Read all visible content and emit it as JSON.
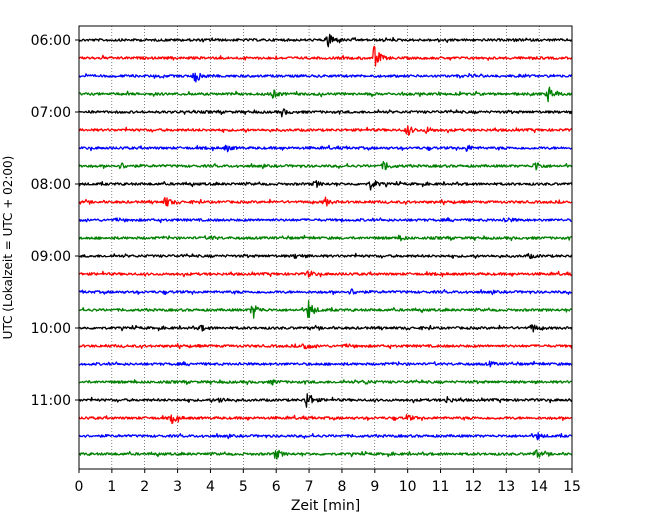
{
  "chart_data": {
    "type": "line",
    "title": "",
    "xlabel": "Zeit  [min]",
    "ylabel": "UTC (Lokalzeit = UTC + 02:00)",
    "xlim": [
      0,
      15
    ],
    "x_ticks": [
      0,
      1,
      2,
      3,
      4,
      5,
      6,
      7,
      8,
      9,
      10,
      11,
      12,
      13,
      14,
      15
    ],
    "y_ticks": [
      "06:00",
      "07:00",
      "08:00",
      "09:00",
      "10:00",
      "11:00"
    ],
    "grid": "vertical dotted",
    "trace_colors": [
      "#000000",
      "#ff0000",
      "#0000ff",
      "#008000"
    ],
    "traces": [
      {
        "start": "06:00",
        "events": [
          [
            7.6,
            9
          ]
        ]
      },
      {
        "start": "06:15",
        "events": [
          [
            9.0,
            13
          ]
        ]
      },
      {
        "start": "06:30",
        "events": [
          [
            3.55,
            7
          ]
        ]
      },
      {
        "start": "06:45",
        "events": [
          [
            5.9,
            4
          ],
          [
            14.3,
            7
          ]
        ]
      },
      {
        "start": "07:00",
        "events": [
          [
            6.2,
            3
          ]
        ]
      },
      {
        "start": "07:15",
        "events": [
          [
            10.0,
            5
          ],
          [
            10.6,
            3
          ]
        ]
      },
      {
        "start": "07:30",
        "events": [
          [
            4.5,
            3
          ],
          [
            11.8,
            3
          ]
        ]
      },
      {
        "start": "07:45",
        "events": [
          [
            1.3,
            3
          ],
          [
            9.3,
            5
          ],
          [
            13.9,
            5
          ]
        ]
      },
      {
        "start": "08:00",
        "events": [
          [
            7.2,
            3
          ],
          [
            8.9,
            6
          ]
        ]
      },
      {
        "start": "08:15",
        "events": [
          [
            2.65,
            5
          ],
          [
            7.5,
            4
          ]
        ]
      },
      {
        "start": "08:30",
        "events": [
          [
            13.0,
            3
          ]
        ]
      },
      {
        "start": "08:45",
        "events": [
          [
            4.0,
            2
          ],
          [
            9.8,
            2
          ]
        ]
      },
      {
        "start": "09:00",
        "events": [
          [
            6.6,
            2
          ],
          [
            13.7,
            2
          ]
        ]
      },
      {
        "start": "09:15",
        "events": [
          [
            7.0,
            3
          ]
        ]
      },
      {
        "start": "09:30",
        "events": [
          [
            8.3,
            3
          ]
        ]
      },
      {
        "start": "09:45",
        "events": [
          [
            5.3,
            8
          ],
          [
            7.0,
            10
          ]
        ]
      },
      {
        "start": "10:00",
        "events": [
          [
            3.7,
            3
          ],
          [
            13.8,
            4
          ]
        ]
      },
      {
        "start": "10:15",
        "events": [
          [
            6.85,
            5
          ]
        ]
      },
      {
        "start": "10:30",
        "events": [
          [
            12.5,
            2
          ]
        ]
      },
      {
        "start": "10:45",
        "events": [
          [
            5.9,
            2
          ],
          [
            8.7,
            2
          ]
        ]
      },
      {
        "start": "11:00",
        "events": [
          [
            4.3,
            3
          ],
          [
            6.95,
            10
          ],
          [
            11.2,
            3
          ]
        ]
      },
      {
        "start": "11:15",
        "events": [
          [
            2.85,
            5
          ],
          [
            10.0,
            3
          ]
        ]
      },
      {
        "start": "11:30",
        "events": [
          [
            13.95,
            3
          ]
        ]
      },
      {
        "start": "11:45",
        "events": [
          [
            6.0,
            5
          ],
          [
            13.9,
            4
          ]
        ]
      }
    ]
  }
}
